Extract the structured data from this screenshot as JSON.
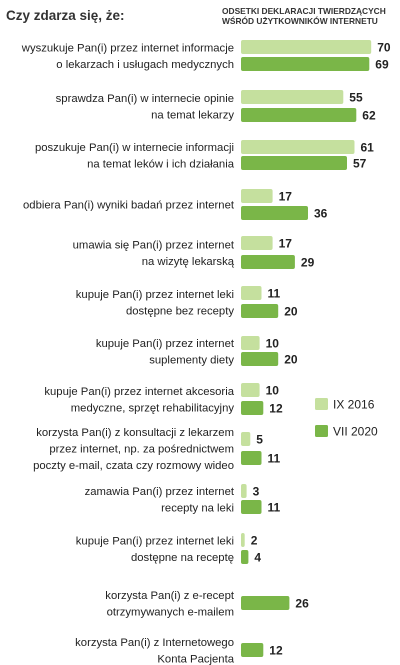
{
  "chart_data": {
    "type": "bar",
    "orientation": "horizontal",
    "title": "Czy zdarza się, że:",
    "subtitle_lines": [
      "ODSETKI DEKLARACJI TWIERDZĄCYCH",
      "WŚRÓD UŻYTKOWNIKÓW INTERNETU"
    ],
    "categories": [
      [
        "wyszukuje Pan(i) przez internet informacje",
        "o lekarzach i usługach medycznych"
      ],
      [
        "sprawdza Pan(i) w internecie opinie",
        "na temat lekarzy"
      ],
      [
        "poszukuje Pan(i) w internecie informacji",
        "na temat leków i ich działania"
      ],
      [
        "odbiera Pan(i) wyniki badań przez internet"
      ],
      [
        "umawia się Pan(i) przez internet",
        "na wizytę lekarską"
      ],
      [
        "kupuje Pan(i) przez internet leki",
        "dostępne bez recepty"
      ],
      [
        "kupuje Pan(i) przez internet",
        "suplementy diety"
      ],
      [
        "kupuje Pan(i) przez internet akcesoria",
        "medyczne, sprzęt rehabilitacyjny"
      ],
      [
        "korzysta Pan(i) z konsultacji z lekarzem",
        "przez internet, np. za pośrednictwem",
        "poczty e-mail, czata czy rozmowy wideo"
      ],
      [
        "zamawia Pan(i) przez internet",
        "recepty na leki"
      ],
      [
        "kupuje Pan(i) przez internet leki",
        "dostępne na receptę"
      ],
      [
        "korzysta Pan(i) z e-recept",
        "otrzymywanych e-mailem"
      ],
      [
        "korzysta Pan(i) z Internetowego",
        "Konta Pacjenta"
      ]
    ],
    "series": [
      {
        "name": "IX 2016",
        "color": "#c5e09e",
        "values": [
          70,
          55,
          61,
          17,
          17,
          11,
          10,
          10,
          5,
          3,
          2,
          null,
          null
        ]
      },
      {
        "name": "VII 2020",
        "color": "#7ab648",
        "values": [
          69,
          62,
          57,
          36,
          29,
          20,
          20,
          12,
          11,
          11,
          4,
          26,
          12
        ]
      }
    ],
    "xlim": [
      0,
      75
    ],
    "legend_position": "right",
    "grid": false
  }
}
